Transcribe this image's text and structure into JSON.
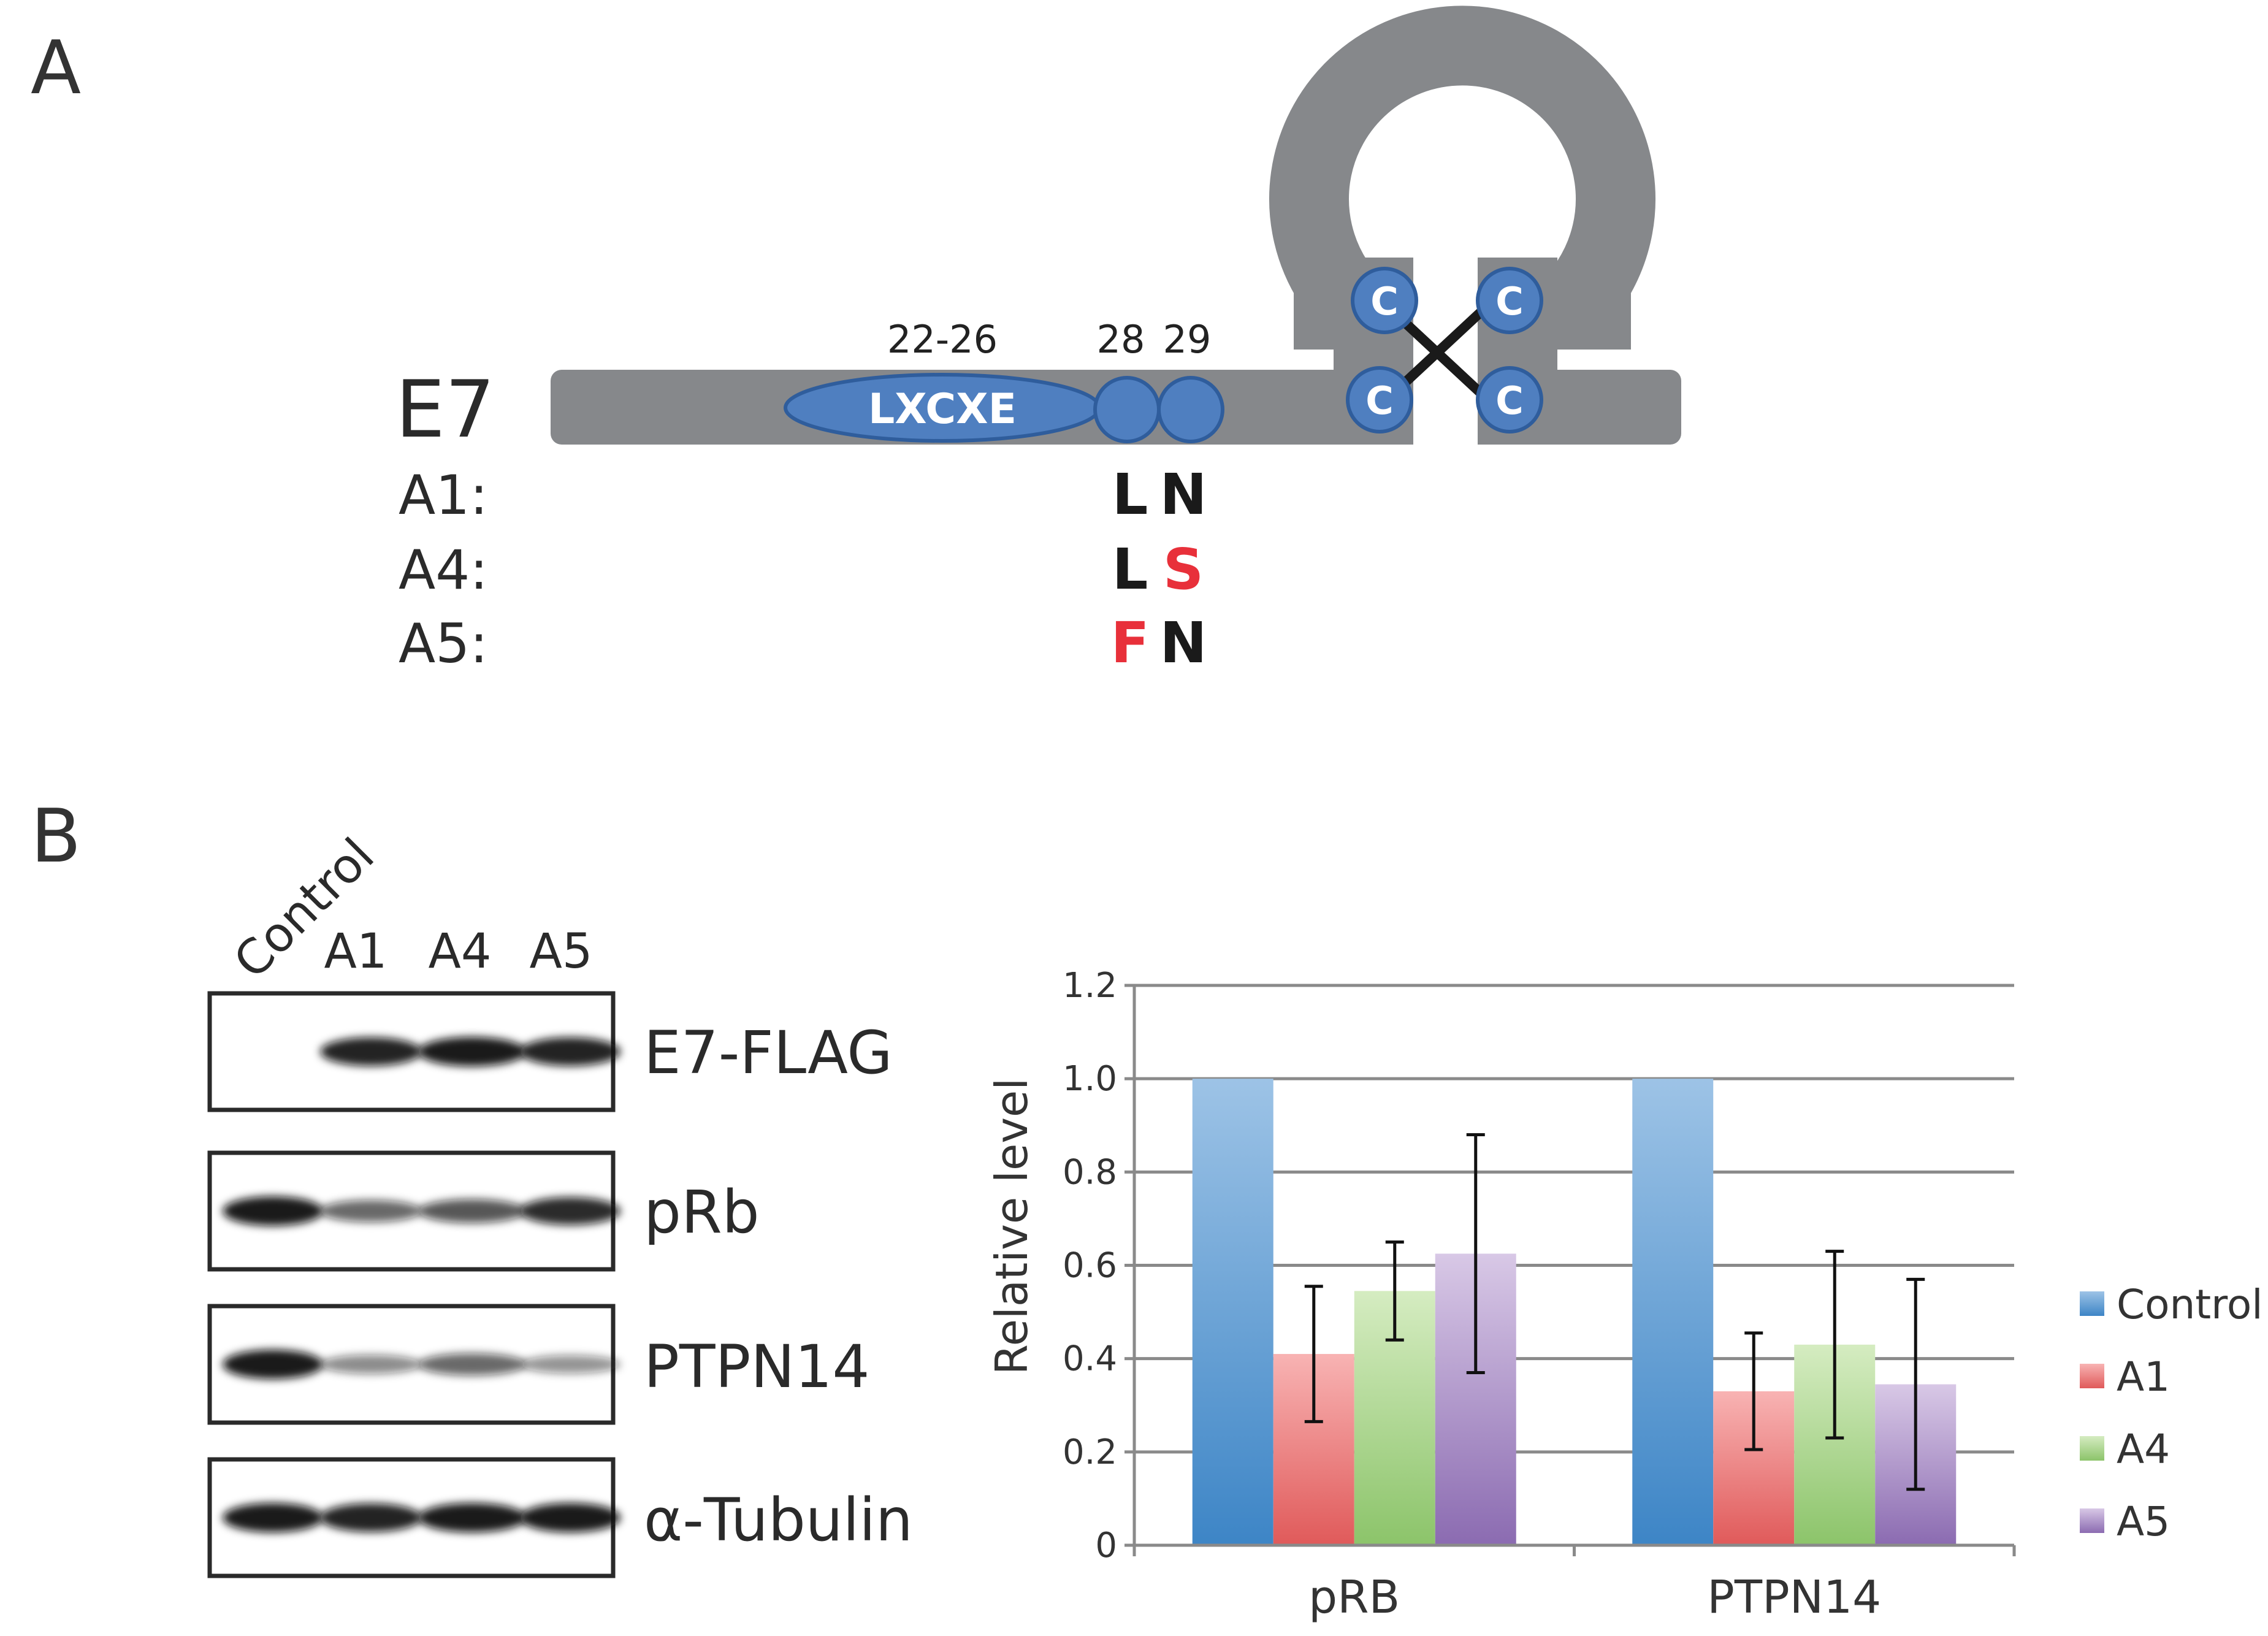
{
  "panel_a": {
    "letter": "A",
    "protein": "E7",
    "domain_label": "LXCXE",
    "residue_labels": [
      "22-26",
      "28",
      "29"
    ],
    "cysteine_label": "C",
    "mutants": [
      {
        "label": "A1:",
        "res28": "L",
        "res29": "N",
        "res28_color": "#1a1a1a",
        "res29_color": "#1a1a1a"
      },
      {
        "label": "A4:",
        "res28": "L",
        "res29": "S",
        "res28_color": "#1a1a1a",
        "res29_color": "#e8303a"
      },
      {
        "label": "A5:",
        "res28": "F",
        "res29": "N",
        "res28_color": "#e8303a",
        "res29_color": "#1a1a1a"
      }
    ],
    "colors": {
      "backbone": "#86888b",
      "motif": "#4f7fc0",
      "motif_edge": "#2f5d9c",
      "mutation": "#e8303a"
    }
  },
  "panel_b": {
    "letter": "B",
    "lanes": [
      "Control",
      "A1",
      "A4",
      "A5"
    ],
    "blots": [
      {
        "label": "E7-FLAG",
        "intensities": [
          0.0,
          0.95,
          1.0,
          0.95
        ]
      },
      {
        "label": "pRb",
        "intensities": [
          1.0,
          0.55,
          0.65,
          0.9
        ]
      },
      {
        "label": "PTPN14",
        "intensities": [
          1.0,
          0.35,
          0.55,
          0.3
        ]
      },
      {
        "label": "α-Tubulin",
        "intensities": [
          1.0,
          0.95,
          1.0,
          1.0
        ]
      }
    ]
  },
  "chart_data": {
    "type": "bar",
    "title": "",
    "xlabel": "",
    "ylabel": "Relative level",
    "categories": [
      "pRB",
      "PTPN14"
    ],
    "ylim": [
      0,
      1.2
    ],
    "yticks": [
      "0",
      "0.2",
      "0.4",
      "0.6",
      "0.8",
      "1.0",
      "1.2"
    ],
    "grid": true,
    "legend_position": "right",
    "series": [
      {
        "name": "Control",
        "color_top": "#9dc3e6",
        "color_bottom": "#3d85c6",
        "values": [
          1.0,
          1.0
        ],
        "errors": [
          0,
          0
        ]
      },
      {
        "name": "A1",
        "color_top": "#f8b3b3",
        "color_bottom": "#e05a5a",
        "values": [
          0.41,
          0.33
        ],
        "errors": [
          0.145,
          0.125
        ]
      },
      {
        "name": "A4",
        "color_top": "#d5ecc1",
        "color_bottom": "#8cc46a",
        "values": [
          0.545,
          0.43
        ],
        "errors": [
          0.105,
          0.2
        ]
      },
      {
        "name": "A5",
        "color_top": "#d8c8e6",
        "color_bottom": "#8b6bb1",
        "values": [
          0.625,
          0.345
        ],
        "errors": [
          0.255,
          0.225
        ]
      }
    ]
  }
}
